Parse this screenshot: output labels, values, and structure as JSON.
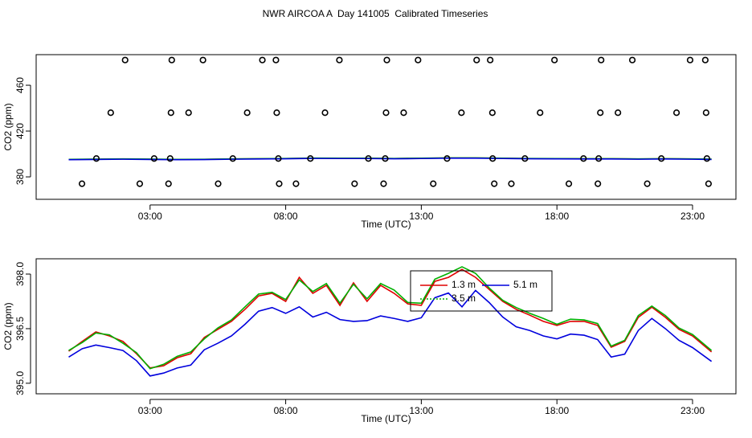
{
  "chart_data": [
    {
      "type": "line",
      "title": "NWR AIRCOA A  Day 141005  Calibrated Timeseries",
      "xlabel": "Time (UTC)",
      "ylabel": "CO2 (ppm)",
      "xlim": [
        -1.2,
        24.6
      ],
      "ylim": [
        360.4,
        486.7
      ],
      "xticks": [
        {
          "value": 3,
          "label": "03:00"
        },
        {
          "value": 8,
          "label": "08:00"
        },
        {
          "value": 13,
          "label": "13:00"
        },
        {
          "value": 18,
          "label": "18:00"
        },
        {
          "value": 23,
          "label": "23:00"
        }
      ],
      "yticks": [
        380,
        420,
        460
      ],
      "x": [
        0,
        1,
        2,
        3,
        4,
        5,
        6,
        7,
        8,
        9,
        10,
        11,
        12,
        13,
        14,
        15,
        16,
        17,
        18,
        19,
        20,
        21,
        22,
        23,
        23.7
      ],
      "series": [
        {
          "color": "#e00000",
          "values": [
            395.2,
            395.4,
            395.6,
            395.4,
            395.2,
            395.3,
            395.6,
            395.8,
            396.0,
            396.3,
            396.2,
            396.2,
            396.0,
            396.2,
            396.5,
            396.5,
            396.2,
            396.0,
            395.9,
            395.8,
            395.8,
            395.6,
            395.8,
            395.6,
            395.4
          ]
        },
        {
          "color": "#00b000",
          "values": [
            395.3,
            395.5,
            395.7,
            395.5,
            395.3,
            395.4,
            395.7,
            395.9,
            396.1,
            396.4,
            396.3,
            396.3,
            396.1,
            396.3,
            396.6,
            396.6,
            396.3,
            396.1,
            396.0,
            395.9,
            395.9,
            395.7,
            395.9,
            395.7,
            395.5
          ]
        },
        {
          "color": "#0000dd",
          "values": [
            395.0,
            395.2,
            395.4,
            395.2,
            395.0,
            395.1,
            395.4,
            395.6,
            395.8,
            396.1,
            396.0,
            396.0,
            395.8,
            396.0,
            396.3,
            396.3,
            396.0,
            395.8,
            395.7,
            395.6,
            395.6,
            395.4,
            395.6,
            395.4,
            395.2
          ]
        }
      ],
      "points": {
        "color": "#000000",
        "x": [
          2.08,
          3.8,
          4.95,
          7.14,
          7.64,
          9.98,
          11.73,
          12.88,
          15.04,
          15.54,
          17.91,
          19.63,
          20.78,
          22.91,
          23.47,
          1.55,
          3.77,
          4.42,
          6.58,
          7.67,
          9.45,
          11.7,
          12.35,
          14.48,
          15.62,
          17.38,
          19.6,
          20.25,
          22.41,
          23.5,
          1.02,
          3.15,
          3.74,
          6.05,
          7.73,
          8.91,
          11.05,
          11.67,
          13.95,
          15.63,
          16.82,
          18.98,
          19.54,
          21.85,
          23.53,
          0.49,
          2.62,
          3.68,
          5.51,
          7.76,
          8.38,
          10.54,
          11.61,
          13.44,
          15.69,
          16.32,
          18.44,
          19.51,
          21.33,
          23.59
        ],
        "y": [
          482,
          482,
          482,
          482,
          482,
          482,
          482,
          482,
          482,
          482,
          482,
          482,
          482,
          482,
          482,
          436,
          436,
          436,
          436,
          436,
          436,
          436,
          436,
          436,
          436,
          436,
          436,
          436,
          436,
          436,
          396,
          396,
          396,
          396,
          396,
          396,
          396,
          396,
          396,
          396,
          396,
          396,
          396,
          396,
          396,
          374,
          374,
          374,
          374,
          374,
          374,
          374,
          374,
          374,
          374,
          374,
          374,
          374,
          374,
          374
        ]
      }
    },
    {
      "type": "line",
      "xlabel": "Time (UTC)",
      "ylabel": "CO2 (ppm)",
      "xlim": [
        -1.2,
        24.6
      ],
      "ylim": [
        394.71,
        398.42
      ],
      "xticks": [
        {
          "value": 3,
          "label": "03:00"
        },
        {
          "value": 8,
          "label": "08:00"
        },
        {
          "value": 13,
          "label": "13:00"
        },
        {
          "value": 18,
          "label": "18:00"
        },
        {
          "value": 23,
          "label": "23:00"
        }
      ],
      "yticks": [
        {
          "value": 395,
          "label": "395.0"
        },
        {
          "value": 396.5,
          "label": "396.5"
        },
        {
          "value": 398,
          "label": "398.0"
        }
      ],
      "legend": "top",
      "x": [
        0,
        0.5,
        1,
        1.5,
        2,
        2.5,
        3,
        3.5,
        4,
        4.5,
        5,
        5.5,
        6,
        6.5,
        7,
        7.5,
        8,
        8.5,
        9,
        9.5,
        10,
        10.5,
        11,
        11.5,
        12,
        12.5,
        13,
        13.5,
        14,
        14.5,
        15,
        15.5,
        16,
        16.5,
        17,
        17.5,
        18,
        18.5,
        19,
        19.5,
        20,
        20.5,
        21,
        21.5,
        22,
        22.5,
        23,
        23.7
      ],
      "series": [
        {
          "name": "1.3 m",
          "color": "#e00000",
          "values": [
            395.88,
            396.15,
            396.41,
            396.3,
            396.15,
            395.81,
            395.42,
            395.48,
            395.7,
            395.81,
            396.26,
            396.48,
            396.7,
            397.03,
            397.4,
            397.47,
            397.25,
            397.91,
            397.47,
            397.69,
            397.14,
            397.76,
            397.25,
            397.69,
            397.47,
            397.18,
            397.14,
            397.8,
            397.91,
            398.13,
            397.91,
            397.58,
            397.25,
            397.03,
            396.87,
            396.7,
            396.59,
            396.7,
            396.7,
            396.59,
            395.99,
            396.15,
            396.81,
            397.09,
            396.81,
            396.48,
            396.3,
            395.86
          ]
        },
        {
          "name": "3.5 m",
          "color": "#00b000",
          "values": [
            395.9,
            396.12,
            396.38,
            396.33,
            396.1,
            395.84,
            395.4,
            395.52,
            395.74,
            395.86,
            396.22,
            396.52,
            396.74,
            397.1,
            397.45,
            397.5,
            397.3,
            397.84,
            397.52,
            397.74,
            397.2,
            397.72,
            397.32,
            397.74,
            397.56,
            397.22,
            397.2,
            397.86,
            398.02,
            398.2,
            398.02,
            397.62,
            397.28,
            397.08,
            396.92,
            396.78,
            396.62,
            396.76,
            396.74,
            396.64,
            396.02,
            396.18,
            396.86,
            397.12,
            396.86,
            396.52,
            396.34,
            395.9
          ]
        },
        {
          "name": "5.1 m",
          "color": "#0000dd",
          "values": [
            395.72,
            395.95,
            396.05,
            395.98,
            395.9,
            395.62,
            395.2,
            395.28,
            395.42,
            395.5,
            395.92,
            396.1,
            396.3,
            396.62,
            396.98,
            397.08,
            396.92,
            397.1,
            396.82,
            396.95,
            396.75,
            396.7,
            396.72,
            396.85,
            396.78,
            396.7,
            396.8,
            397.35,
            397.48,
            397.1,
            397.55,
            397.22,
            396.82,
            396.55,
            396.45,
            396.3,
            396.22,
            396.35,
            396.32,
            396.2,
            395.72,
            395.8,
            396.45,
            396.78,
            396.5,
            396.18,
            395.98,
            395.6
          ]
        }
      ]
    }
  ]
}
